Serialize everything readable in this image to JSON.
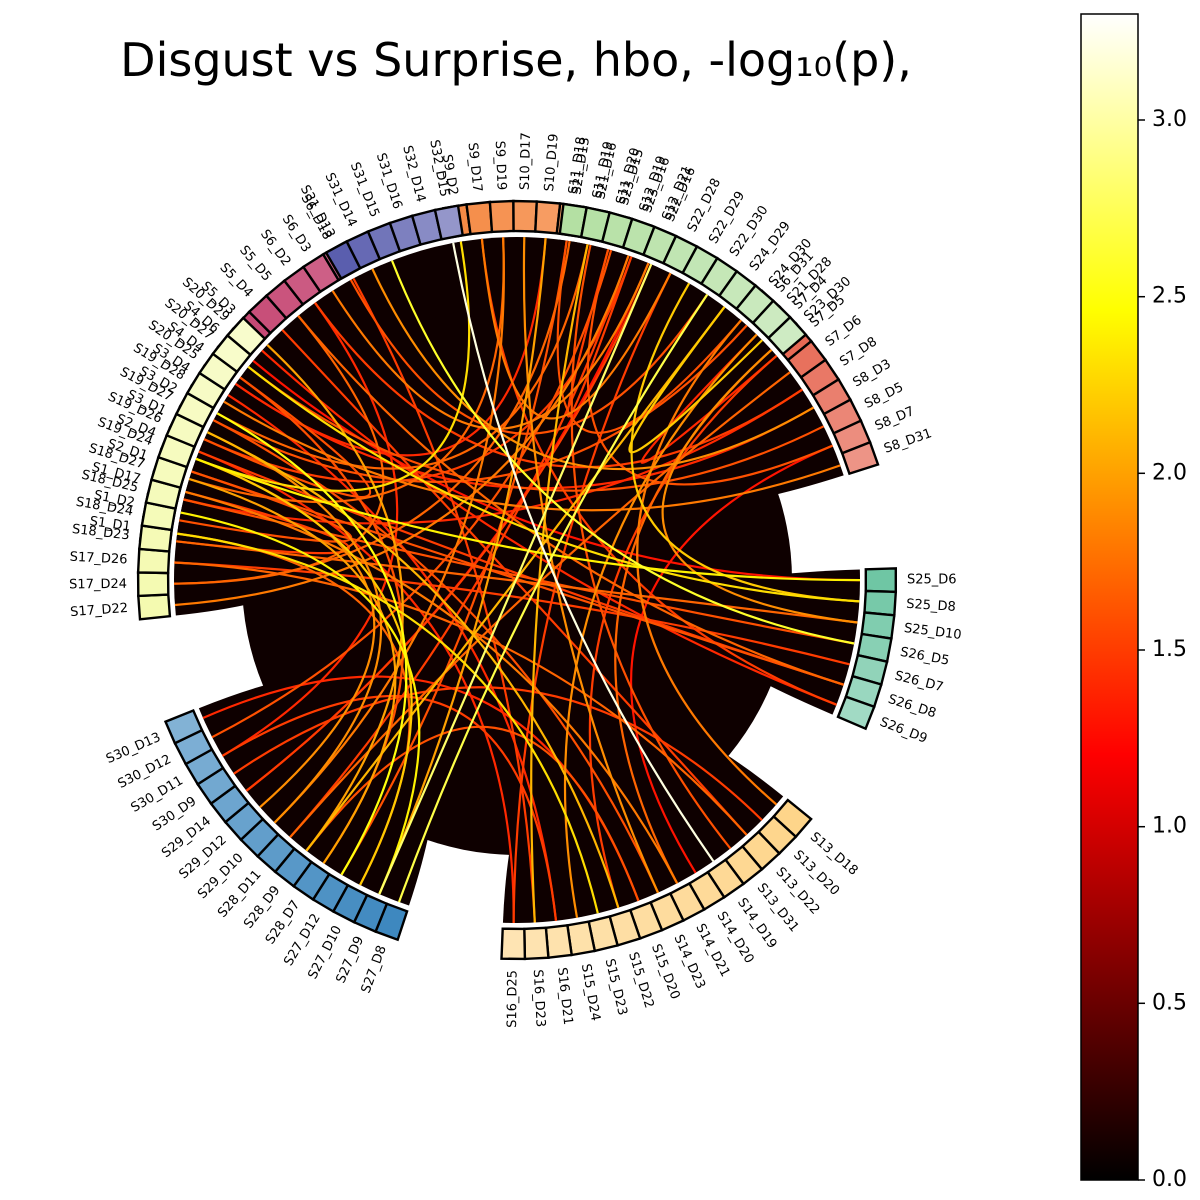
{
  "chart_data": {
    "type": "chord",
    "title": "Disgust vs Surprise, hbo, -log₁₀(p),",
    "colorbar": {
      "colormap": "hot",
      "range": [
        0,
        3.3
      ],
      "ticks": [
        "0.0",
        "0.5",
        "1.0",
        "1.5",
        "2.0",
        "2.5",
        "3.0"
      ]
    },
    "groups": [
      {
        "color": "#b5124b",
        "nodes": [
          "S1_D1",
          "S1_D2",
          "S1_D17",
          "S2_D1",
          "S2_D4",
          "S3_D1",
          "S3_D2",
          "S3_D4",
          "S4_D4",
          "S4_D6",
          "S5_D3",
          "S5_D4",
          "S5_D5",
          "S6_D2",
          "S6_D3",
          "S6_D18"
        ]
      },
      {
        "color": "#f58a45",
        "nodes": [
          "S9_D2",
          "S9_D17",
          "S9_D19",
          "S10_D17",
          "S10_D19",
          "S11_D18",
          "S11_D19",
          "S11_D20",
          "S12_D19",
          "S12_D21"
        ]
      },
      {
        "color": "#e45b45",
        "nodes": [
          "S6_D31",
          "S7_D4",
          "S7_D5",
          "S7_D6",
          "S7_D8",
          "S8_D3",
          "S8_D5",
          "S8_D7",
          "S8_D31"
        ]
      },
      {
        "color": "#6fc6a4",
        "nodes": [
          "S25_D6",
          "S25_D8",
          "S25_D10",
          "S26_D5",
          "S26_D7",
          "S26_D8",
          "S26_D9"
        ]
      },
      {
        "color": "#fed58a",
        "nodes": [
          "S13_D18",
          "S13_D20",
          "S13_D22",
          "S13_D31",
          "S14_D19",
          "S14_D20",
          "S14_D21",
          "S14_D23",
          "S15_D20",
          "S15_D22",
          "S15_D23",
          "S15_D24",
          "S16_D21",
          "S16_D23",
          "S16_D25"
        ]
      },
      {
        "color": "#3e88bf",
        "nodes": [
          "S27_D8",
          "S27_D9",
          "S27_D10",
          "S27_D12",
          "S28_D7",
          "S28_D9",
          "S28_D11",
          "S29_D10",
          "S29_D12",
          "S29_D14",
          "S30_D9",
          "S30_D11",
          "S30_D12",
          "S30_D13"
        ]
      },
      {
        "color": "#f4fab0",
        "nodes": [
          "S17_D22",
          "S17_D24",
          "S17_D26",
          "S18_D23",
          "S18_D24",
          "S18_D25",
          "S18_D27",
          "S19_D24",
          "S19_D26",
          "S19_D27",
          "S19_D28",
          "S20_D25",
          "S20_D27",
          "S20_D29"
        ]
      },
      {
        "color": "#5a5eae",
        "nodes": [
          "S31_D13",
          "S31_D14",
          "S31_D15",
          "S31_D16",
          "S32_D14",
          "S32_D15"
        ]
      },
      {
        "color": "#b4e0a3",
        "nodes": [
          "S21_D13",
          "S21_D16",
          "S23_D15",
          "S23_D16",
          "S22_D16",
          "S22_D28",
          "S22_D29",
          "S22_D30",
          "S24_D29",
          "S24_D30",
          "S21_D28",
          "S23_D30"
        ]
      }
    ],
    "edges": [
      [
        "S1_D1",
        "S15_D23",
        2.3
      ],
      [
        "S1_D2",
        "S27_D9",
        2.4
      ],
      [
        "S1_D17",
        "S14_D21",
        1.8
      ],
      [
        "S2_D1",
        "S18_D24",
        1.6
      ],
      [
        "S2_D4",
        "S26_D8",
        1.5
      ],
      [
        "S3_D1",
        "S29_D10",
        1.9
      ],
      [
        "S3_D2",
        "S11_D19",
        1.7
      ],
      [
        "S3_D4",
        "S16_D21",
        1.4
      ],
      [
        "S4_D4",
        "S19_D26",
        1.6
      ],
      [
        "S4_D6",
        "S25_D6",
        1.3
      ],
      [
        "S5_D3",
        "S28_D9",
        2.0
      ],
      [
        "S5_D4",
        "S13_D22",
        1.5
      ],
      [
        "S5_D5",
        "S17_D24",
        1.7
      ],
      [
        "S6_D2",
        "S30_D11",
        1.4
      ],
      [
        "S6_D3",
        "S12_D21",
        1.8
      ],
      [
        "S6_D18",
        "S22_D30",
        1.6
      ],
      [
        "S9_D2",
        "S19_D24",
        2.3
      ],
      [
        "S9_D17",
        "S26_D9",
        1.5
      ],
      [
        "S9_D19",
        "S18_D27",
        1.7
      ],
      [
        "S10_D17",
        "S14_D23",
        1.9
      ],
      [
        "S10_D19",
        "S20_D25",
        1.4
      ],
      [
        "S11_D18",
        "S27_D12",
        1.6
      ],
      [
        "S11_D19",
        "S16_D23",
        2.1
      ],
      [
        "S11_D20",
        "S23_D16",
        1.5
      ],
      [
        "S12_D19",
        "S17_D22",
        1.8
      ],
      [
        "S12_D21",
        "S29_D14",
        1.3
      ],
      [
        "S6_D31",
        "S19_D27",
        1.6
      ],
      [
        "S7_D4",
        "S24_D29",
        2.2
      ],
      [
        "S7_D5",
        "S15_D22",
        1.5
      ],
      [
        "S7_D6",
        "S28_D11",
        1.7
      ],
      [
        "S7_D8",
        "S18_D25",
        1.4
      ],
      [
        "S8_D3",
        "S31_D14",
        1.9
      ],
      [
        "S8_D5",
        "S20_D27",
        1.6
      ],
      [
        "S8_D7",
        "S14_D20",
        1.3
      ],
      [
        "S8_D31",
        "S19_D28",
        1.8
      ],
      [
        "S25_D6",
        "S19_D24",
        2.4
      ],
      [
        "S25_D8",
        "S22_D29",
        2.2
      ],
      [
        "S25_D10",
        "S18_D23",
        1.7
      ],
      [
        "S26_D5",
        "S31_D15",
        2.6
      ],
      [
        "S26_D7",
        "S17_D26",
        1.5
      ],
      [
        "S26_D8",
        "S2_D1",
        1.6
      ],
      [
        "S26_D9",
        "S20_D29",
        1.4
      ],
      [
        "S13_D18",
        "S24_D30",
        1.8
      ],
      [
        "S13_D20",
        "S30_D9",
        1.5
      ],
      [
        "S13_D31",
        "S21_D16",
        1.6
      ],
      [
        "S14_D19",
        "S32_D15",
        3.2
      ],
      [
        "S14_D21",
        "S23_D30",
        1.7
      ],
      [
        "S15_D20",
        "S30_D13",
        1.4
      ],
      [
        "S15_D24",
        "S21_D28",
        1.9
      ],
      [
        "S16_D25",
        "S22_D28",
        1.5
      ],
      [
        "S27_D8",
        "S22_D30",
        2.7
      ],
      [
        "S27_D10",
        "S19_D24",
        2.2
      ],
      [
        "S28_D7",
        "S18_D27",
        2.0
      ],
      [
        "S29_D12",
        "S19_D24",
        1.9
      ],
      [
        "S30_D12",
        "S23_D15",
        1.6
      ],
      [
        "S27_D9",
        "S22_D16",
        2.8
      ],
      [
        "S28_D9",
        "S24_D29",
        2.1
      ],
      [
        "S1_D1",
        "S27_D10",
        1.7
      ],
      [
        "S3_D2",
        "S27_D12",
        2.5
      ],
      [
        "S4_D4",
        "S28_D7",
        1.6
      ],
      [
        "S10_D19",
        "S27_D9",
        2.0
      ],
      [
        "S12_D19",
        "S28_D11",
        1.5
      ],
      [
        "S9_D19",
        "S29_D10",
        1.8
      ],
      [
        "S2_D4",
        "S16_D25",
        1.4
      ],
      [
        "S5_D5",
        "S26_D8",
        1.7
      ],
      [
        "S6_D2",
        "S7_D8",
        1.5
      ],
      [
        "S11_D20",
        "S8_D7",
        1.6
      ],
      [
        "S23_D16",
        "S19_D26",
        1.5
      ],
      [
        "S21_D13",
        "S17_D24",
        1.7
      ],
      [
        "S22_D28",
        "S9_D17",
        1.8
      ],
      [
        "S24_D30",
        "S11_D18",
        1.6
      ],
      [
        "S21_D28",
        "S7_D5",
        1.4
      ],
      [
        "S23_D30",
        "S25_D10",
        1.9
      ],
      [
        "S3_D1",
        "S15_D22",
        2.1
      ],
      [
        "S1_D17",
        "S18_D23",
        1.5
      ],
      [
        "S20_D25",
        "S8_D3",
        1.4
      ],
      [
        "S18_D25",
        "S26_D5",
        1.6
      ],
      [
        "S17_D26",
        "S13_D22",
        1.7
      ],
      [
        "S19_D27",
        "S14_D23",
        1.6
      ],
      [
        "S20_D27",
        "S25_D8",
        2.3
      ],
      [
        "S29_D14",
        "S22_D16",
        1.5
      ],
      [
        "S30_D11",
        "S16_D21",
        1.5
      ],
      [
        "S28_D9",
        "S15_D20",
        1.6
      ],
      [
        "S31_D13",
        "S16_D23",
        1.5
      ]
    ]
  }
}
